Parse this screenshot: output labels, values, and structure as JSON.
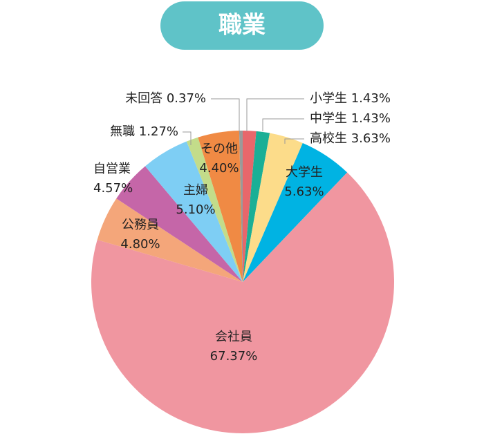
{
  "chart_data": {
    "type": "pie",
    "title": "職業",
    "categories": [
      "小学生",
      "中学生",
      "高校生",
      "大学生",
      "会社員",
      "公務員",
      "自営業",
      "主婦",
      "無職",
      "その他",
      "未回答"
    ],
    "values": [
      1.43,
      1.43,
      3.63,
      5.63,
      67.37,
      4.8,
      4.57,
      5.1,
      1.27,
      4.4,
      0.37
    ],
    "value_labels": [
      "1.43%",
      "1.43%",
      "3.63%",
      "5.63%",
      "67.37%",
      "4.80%",
      "4.57%",
      "5.10%",
      "1.27%",
      "4.40%",
      "0.37%"
    ],
    "colors": [
      "#e8676b",
      "#1aaf96",
      "#fcdc8a",
      "#00b3e3",
      "#f096a0",
      "#f4a67a",
      "#c566a8",
      "#7ecef4",
      "#c3dc8a",
      "#f08a44",
      "#9a9a9a"
    ]
  }
}
